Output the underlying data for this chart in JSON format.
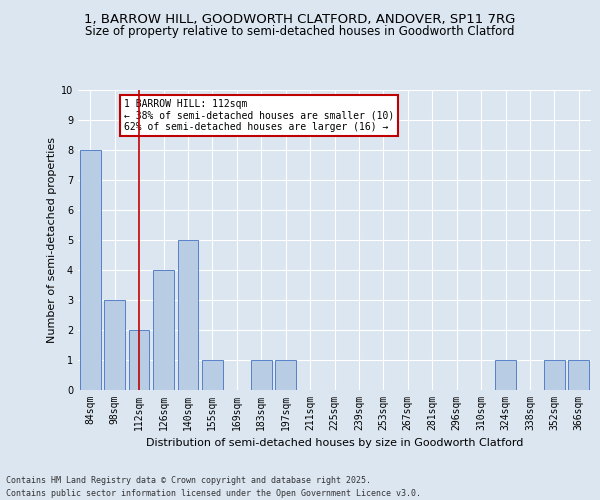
{
  "title": "1, BARROW HILL, GOODWORTH CLATFORD, ANDOVER, SP11 7RG",
  "subtitle": "Size of property relative to semi-detached houses in Goodworth Clatford",
  "xlabel": "Distribution of semi-detached houses by size in Goodworth Clatford",
  "ylabel": "Number of semi-detached properties",
  "categories": [
    "84sqm",
    "98sqm",
    "112sqm",
    "126sqm",
    "140sqm",
    "155sqm",
    "169sqm",
    "183sqm",
    "197sqm",
    "211sqm",
    "225sqm",
    "239sqm",
    "253sqm",
    "267sqm",
    "281sqm",
    "296sqm",
    "310sqm",
    "324sqm",
    "338sqm",
    "352sqm",
    "366sqm"
  ],
  "values": [
    8,
    3,
    2,
    4,
    5,
    1,
    0,
    1,
    1,
    0,
    0,
    0,
    0,
    0,
    0,
    0,
    0,
    1,
    0,
    1,
    1
  ],
  "bar_color": "#b8cce4",
  "bar_edge_color": "#4472c4",
  "highlight_index": 2,
  "highlight_line_color": "#c00000",
  "ylim": [
    0,
    10
  ],
  "yticks": [
    0,
    1,
    2,
    3,
    4,
    5,
    6,
    7,
    8,
    9,
    10
  ],
  "annotation_title": "1 BARROW HILL: 112sqm",
  "annotation_line1": "← 38% of semi-detached houses are smaller (10)",
  "annotation_line2": "62% of semi-detached houses are larger (16) →",
  "annotation_box_color": "#c00000",
  "footer_line1": "Contains HM Land Registry data © Crown copyright and database right 2025.",
  "footer_line2": "Contains public sector information licensed under the Open Government Licence v3.0.",
  "background_color": "#dce6f1",
  "plot_background_color": "#dce6f1",
  "title_fontsize": 9.5,
  "subtitle_fontsize": 8.5,
  "axis_label_fontsize": 8,
  "tick_fontsize": 7,
  "annotation_fontsize": 7,
  "footer_fontsize": 6
}
